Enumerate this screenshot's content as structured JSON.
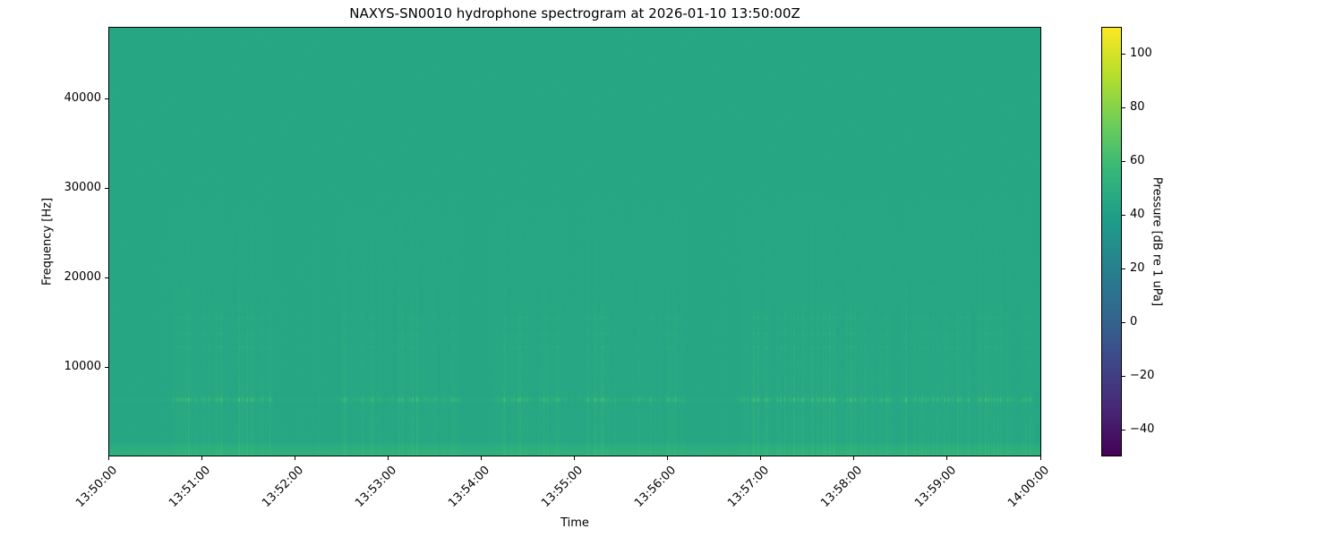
{
  "chart_data": {
    "type": "heatmap",
    "title": "NAXYS-SN0010 hydrophone spectrogram at 2026-01-10 13:50:00Z",
    "xlabel": "Time",
    "ylabel": "Frequency [Hz]",
    "x_ticks": [
      "13:50:00",
      "13:51:00",
      "13:52:00",
      "13:53:00",
      "13:54:00",
      "13:55:00",
      "13:56:00",
      "13:57:00",
      "13:58:00",
      "13:59:00",
      "14:00:00"
    ],
    "xlim": [
      "13:50:00",
      "14:00:00"
    ],
    "y_ticks": [
      10000,
      20000,
      30000,
      40000
    ],
    "ylim": [
      0,
      48000
    ],
    "colorbar": {
      "label": "Pressure [dB re 1 uPa]",
      "ticks": [
        -40,
        -20,
        0,
        20,
        40,
        60,
        80,
        100
      ],
      "range": [
        -50,
        110
      ],
      "colormap": "viridis"
    },
    "background_level_db": 45,
    "features": {
      "tonal_bands_hz": [
        6300,
        12200,
        13700,
        15500
      ],
      "active_periods": [
        [
          "13:50:40",
          "13:51:45"
        ],
        [
          "13:52:30",
          "13:53:45"
        ],
        [
          "13:54:05",
          "13:54:55"
        ],
        [
          "13:55:05",
          "13:56:10"
        ],
        [
          "13:56:45",
          "13:58:25"
        ],
        [
          "13:58:30",
          "13:59:55"
        ]
      ]
    }
  }
}
